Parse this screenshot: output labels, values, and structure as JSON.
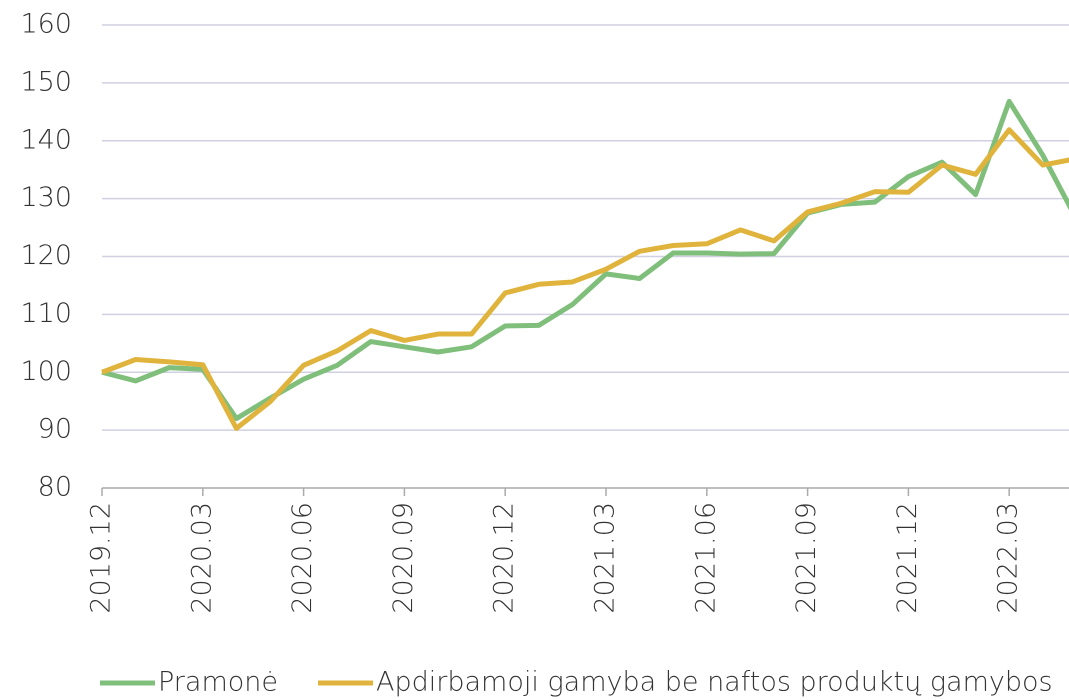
{
  "chart_data": {
    "type": "line",
    "categories": [
      "2019.12",
      null,
      null,
      "2020.03",
      null,
      null,
      "2020.06",
      null,
      null,
      "2020.09",
      null,
      null,
      "2020.12",
      null,
      null,
      "2021.03",
      null,
      null,
      "2021.06",
      null,
      null,
      "2021.09",
      null,
      null,
      "2021.12",
      null,
      null,
      "2022.03",
      null,
      null
    ],
    "series": [
      {
        "name": "Pramonė",
        "color": "#7fbf7b",
        "values": [
          100,
          98.5,
          100.8,
          100.5,
          92,
          95.5,
          98.8,
          101.2,
          105.3,
          104.4,
          103.5,
          104.4,
          108,
          108.1,
          111.7,
          117,
          116.2,
          120.6,
          120.6,
          120.4,
          120.5,
          127.5,
          129,
          129.4,
          133.8,
          136.3,
          130.7,
          146.8,
          137.5,
          126.5
        ]
      },
      {
        "name": "Apdirbamoji gamyba be naftos produktų gamybos",
        "color": "#e0b43c",
        "values": [
          100,
          102.2,
          101.8,
          101.3,
          90.3,
          94.9,
          101.2,
          103.7,
          107.2,
          105.5,
          106.6,
          106.6,
          113.7,
          115.2,
          115.6,
          117.8,
          120.9,
          121.9,
          122.2,
          124.6,
          122.7,
          127.7,
          129.2,
          131.2,
          131.1,
          135.8,
          134.2,
          141.9,
          135.8,
          136.9
        ]
      }
    ],
    "ylim": [
      80,
      160
    ],
    "yticks": [
      80,
      90,
      100,
      110,
      120,
      130,
      140,
      150,
      160
    ],
    "grid": true,
    "legend": "bottom"
  }
}
